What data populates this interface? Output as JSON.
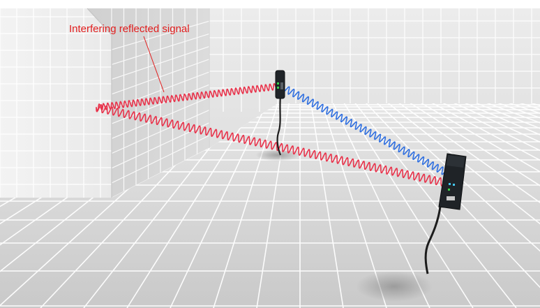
{
  "annotation": {
    "label": "Interfering reflected signal"
  },
  "colors": {
    "reflected_signal": "#e8324a",
    "direct_signal": "#2f6fe0",
    "annotation": "#e11d1d",
    "sensor_body": "#202428",
    "grid_line": "#ffffff",
    "floor": "#d9d9d9",
    "wall_face": "#eeeeee",
    "wall_side": "#d6d6d6",
    "back_wall": "#e7e7e7"
  },
  "elements": {
    "transmitter": "sensor-transmitter",
    "receiver": "sensor-receiver",
    "wall": "reflecting-wall"
  }
}
